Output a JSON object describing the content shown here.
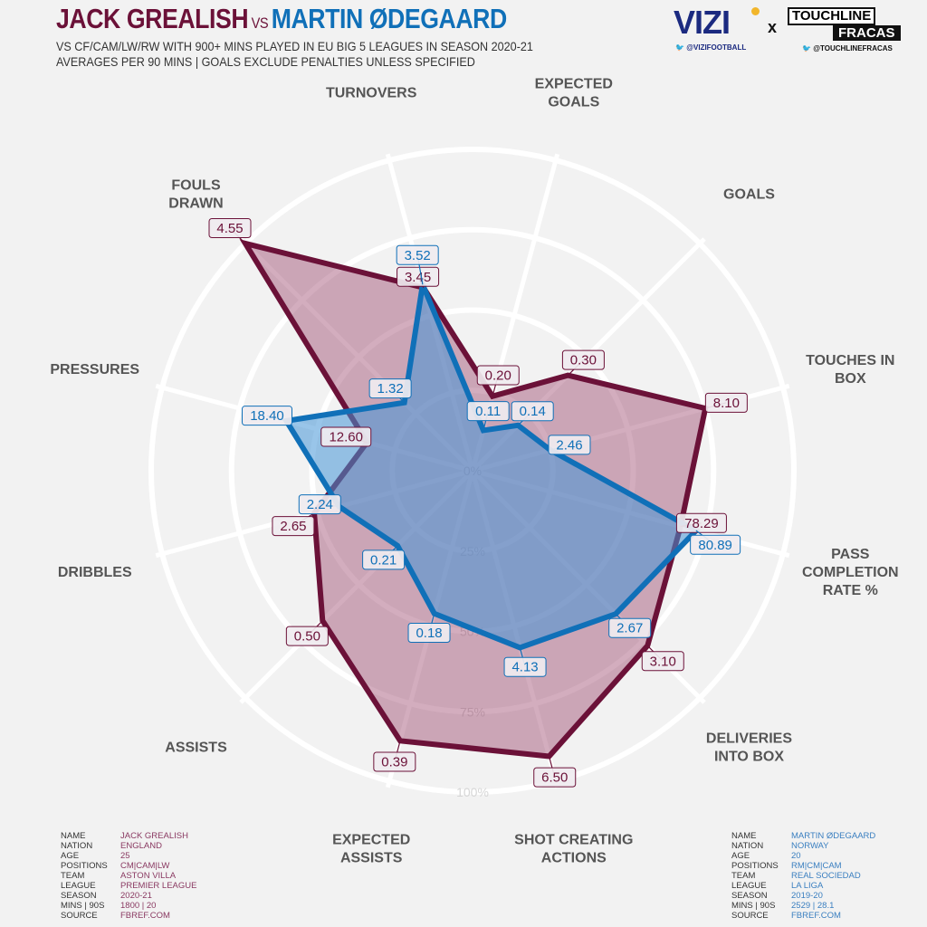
{
  "header": {
    "player1": "JACK GREALISH",
    "vs": "VS",
    "player2": "MARTIN ØDEGAARD",
    "subtitle1": "VS CF/CAM/LW/RW WITH 900+ MINS PLAYED IN EU BIG 5 LEAGUES IN SEASON 2020-21",
    "subtitle2": "AVERAGES PER 90 MINS | GOALS EXCLUDE PENALTIES UNLESS SPECIFIED"
  },
  "logos": {
    "vizi": "VIZI",
    "vizi_handle": "@VIZIFOOTBALL",
    "x": "x",
    "touchline1": "TOUCHLINE",
    "touchline2": "FRACAS",
    "touchline_handle": "@TOUCHLINEFRACAS"
  },
  "colors": {
    "grealish": "#6b1138",
    "grealish_fill": "rgba(140,40,85,0.38)",
    "odegaard": "#1070b8",
    "odegaard_fill": "rgba(70,150,215,0.55)",
    "background": "#f2f2f2"
  },
  "chart_data": {
    "type": "radar",
    "axes": [
      [
        "EXPECTED",
        "GOALS"
      ],
      [
        "GOALS"
      ],
      [
        "TOUCHES IN",
        "BOX"
      ],
      [
        "PASS",
        "COMPLETION",
        "RATE %"
      ],
      [
        "DELIVERIES",
        "INTO BOX"
      ],
      [
        "SHOT CREATING",
        "ACTIONS"
      ],
      [
        "EXPECTED",
        "ASSISTS"
      ],
      [
        "ASSISTS"
      ],
      [
        "DRIBBLES"
      ],
      [
        "PRESSURES"
      ],
      [
        "FOULS",
        "DRAWN"
      ],
      [
        "TURNOVERS"
      ]
    ],
    "ring_labels": [
      "0%",
      "25%",
      "50%",
      "75%",
      "100%"
    ],
    "range": [
      0,
      100
    ],
    "series": [
      {
        "name": "JACK GREALISH",
        "labels": [
          "0.20",
          "0.30",
          "8.10",
          "78.29",
          "3.10",
          "6.50",
          "0.39",
          "0.50",
          "2.65",
          "12.60",
          "4.55",
          "3.45"
        ],
        "percentiles": [
          24,
          42,
          75,
          67,
          77,
          92,
          87,
          66,
          51,
          34,
          100,
          59
        ]
      },
      {
        "name": "MARTIN ØDEGAARD",
        "labels": [
          "0.11",
          "0.14",
          "2.46",
          "80.89",
          "2.67",
          "4.13",
          "0.18",
          "0.21",
          "2.24",
          "18.40",
          "1.32",
          "3.52"
        ],
        "percentiles": [
          13,
          20,
          25,
          72,
          63,
          57,
          46,
          33,
          43,
          60,
          30,
          60
        ]
      }
    ]
  },
  "info": {
    "keys": [
      "NAME",
      "NATION",
      "AGE",
      "POSITIONS",
      "TEAM",
      "LEAGUE",
      "SEASON",
      "MINS | 90S",
      "SOURCE"
    ],
    "grealish": [
      "JACK GREALISH",
      "ENGLAND",
      "25",
      "CM|CAM|LW",
      "ASTON VILLA",
      "PREMIER LEAGUE",
      "2020-21",
      "1800 | 20",
      "FBREF.COM"
    ],
    "odegaard": [
      "MARTIN ØDEGAARD",
      "NORWAY",
      "20",
      "RM|CM|CAM",
      "REAL SOCIEDAD",
      "LA LIGA",
      "2019-20",
      "2529 | 28.1",
      "FBREF.COM"
    ]
  }
}
